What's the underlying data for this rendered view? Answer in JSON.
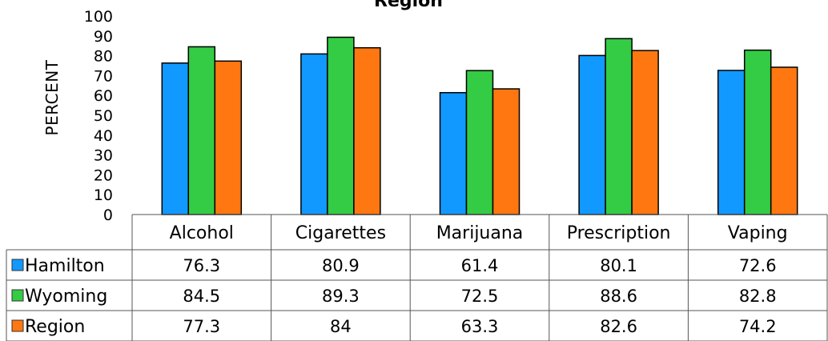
{
  "chart_data": {
    "type": "bar",
    "title": "Region",
    "ylabel": "PERCENT",
    "xlabel": "",
    "ylim": [
      0,
      100
    ],
    "yticks": [
      0,
      10,
      20,
      30,
      40,
      50,
      60,
      70,
      80,
      90,
      100
    ],
    "grid": false,
    "legend": "data-table-left",
    "categories": [
      "Alcohol",
      "Cigarettes",
      "Marijuana",
      "Prescription",
      "Vaping"
    ],
    "series": [
      {
        "name": "Hamilton",
        "color": "#1199ff",
        "values": [
          76.3,
          80.9,
          61.4,
          80.1,
          72.6
        ],
        "display": [
          "76.3",
          "80.9",
          "61.4",
          "80.1",
          "72.6"
        ]
      },
      {
        "name": "Wyoming",
        "color": "#33cc44",
        "values": [
          84.5,
          89.3,
          72.5,
          88.6,
          82.8
        ],
        "display": [
          "84.5",
          "89.3",
          "72.5",
          "88.6",
          "82.8"
        ]
      },
      {
        "name": "Region",
        "color": "#ff7711",
        "values": [
          77.3,
          84,
          63.3,
          82.6,
          74.2
        ],
        "display": [
          "77.3",
          "84",
          "63.3",
          "82.6",
          "74.2"
        ]
      }
    ]
  }
}
